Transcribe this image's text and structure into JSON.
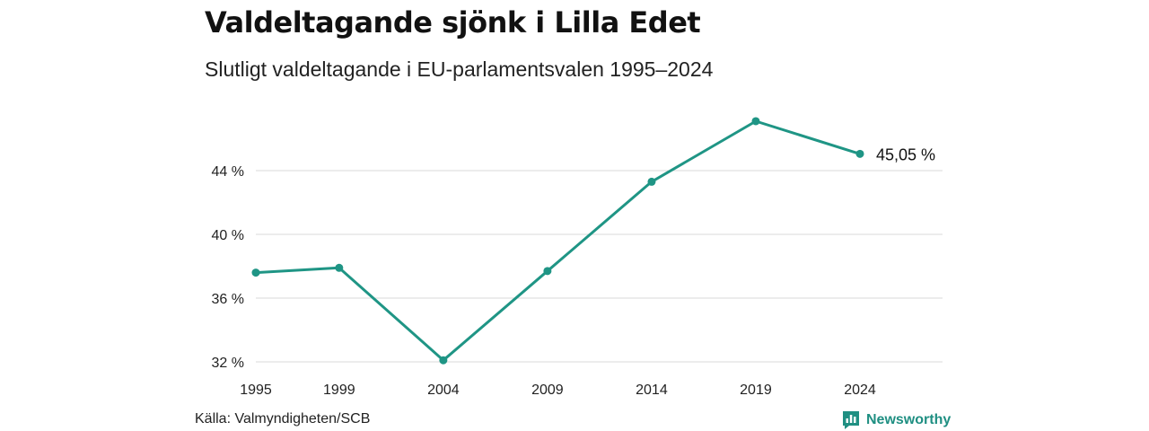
{
  "header": {
    "title": "Valdeltagande sjönk i Lilla Edet",
    "subtitle": "Slutligt valdeltagande i EU-parlamentsvalen 1995–2024"
  },
  "footer": {
    "source": "Källa: Valmyndigheten/SCB",
    "brand": "Newsworthy",
    "brand_icon": "newsworthy-logo-icon"
  },
  "colors": {
    "line": "#1f9585",
    "grid": "#d9d9d9",
    "brand": "#1f8f82"
  },
  "chart_data": {
    "type": "line",
    "categories": [
      "1995",
      "1999",
      "2004",
      "2009",
      "2014",
      "2019",
      "2024"
    ],
    "x": [
      1995,
      1999,
      2004,
      2009,
      2014,
      2019,
      2024
    ],
    "values": [
      37.6,
      37.9,
      32.1,
      37.7,
      43.3,
      47.1,
      45.05
    ],
    "ylim": [
      32,
      48
    ],
    "yticks": [
      32,
      36,
      40,
      44
    ],
    "ytick_labels": [
      "32 %",
      "36 %",
      "40 %",
      "44 %"
    ],
    "end_label": "45,05 %",
    "grid": true
  }
}
